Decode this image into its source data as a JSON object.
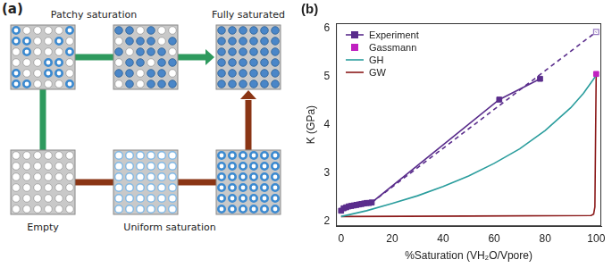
{
  "diagram": {
    "panel_label": "(a)",
    "labels": {
      "patchy": "Patchy saturation",
      "full": "Fully saturated",
      "empty": "Empty",
      "uniform": "Uniform saturation"
    }
  },
  "chart_data": {
    "type": "line",
    "title": "(b)",
    "x_label": "%Saturation (VH₂O/Vpore)",
    "y_label": "K (GPa)",
    "xlim": [
      -2,
      102
    ],
    "xticks": [
      0,
      20,
      40,
      60,
      80,
      100
    ],
    "ylim": [
      1.9,
      6.1
    ],
    "yticks": [
      2,
      3,
      4,
      5,
      6
    ],
    "grid": false,
    "legend": "upper left",
    "series": [
      {
        "name": "Experiment",
        "color": "#5a2d8c",
        "type": "line",
        "marker": "square",
        "line_style": "solid",
        "x": [
          0,
          1,
          2,
          3,
          4,
          5,
          6,
          7,
          8,
          9,
          10,
          11,
          12,
          62,
          78
        ],
        "values": [
          2.22,
          2.27,
          2.29,
          2.31,
          2.32,
          2.33,
          2.34,
          2.35,
          2.36,
          2.37,
          2.38,
          2.38,
          2.39,
          4.52,
          4.95
        ]
      },
      {
        "color": "#5a2d8c",
        "type": "line",
        "marker": "none",
        "line_style": "dashed",
        "x": [
          12,
          100
        ],
        "values": [
          2.39,
          5.92
        ]
      },
      {
        "color": "#9b7fc4",
        "type": "scatter",
        "marker": "open_square",
        "x": [
          100
        ],
        "values": [
          5.92
        ]
      },
      {
        "name": "Gassmann",
        "color": "#c020c0",
        "type": "scatter",
        "marker": "square",
        "x": [
          100
        ],
        "values": [
          5.05
        ]
      },
      {
        "name": "GH",
        "color": "#2a9d9d",
        "type": "line",
        "marker": "none",
        "line_style": "solid",
        "x": [
          0,
          10,
          20,
          30,
          40,
          50,
          60,
          70,
          80,
          90,
          95,
          100
        ],
        "values": [
          2.1,
          2.22,
          2.37,
          2.53,
          2.72,
          2.94,
          3.2,
          3.5,
          3.88,
          4.35,
          4.65,
          5.02
        ]
      },
      {
        "name": "GW",
        "color": "#8b1a1a",
        "type": "line",
        "marker": "none",
        "line_style": "solid",
        "x": [
          0,
          50,
          98,
          99,
          99.5,
          100
        ],
        "values": [
          2.1,
          2.11,
          2.12,
          2.15,
          2.3,
          5.02
        ]
      }
    ]
  }
}
